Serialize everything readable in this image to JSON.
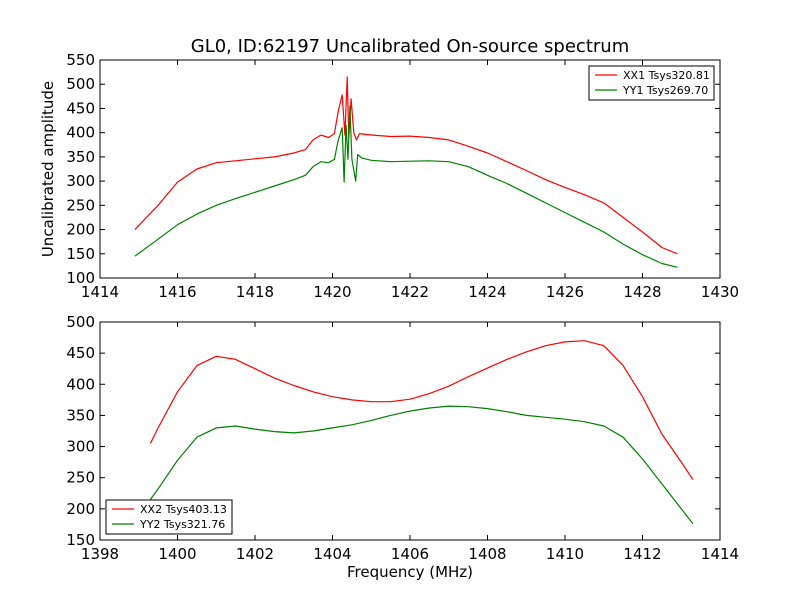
{
  "figure": {
    "title": "GL0, ID:62197 Uncalibrated On-source spectrum",
    "xlabel": "Frequency (MHz)"
  },
  "chart_data": [
    {
      "type": "line",
      "ylabel": "Uncalibrated amplitude",
      "xlim": [
        1414,
        1430
      ],
      "ylim": [
        100,
        550
      ],
      "xticks": [
        1414,
        1416,
        1418,
        1420,
        1422,
        1424,
        1426,
        1428,
        1430
      ],
      "yticks": [
        100,
        150,
        200,
        250,
        300,
        350,
        400,
        450,
        500,
        550
      ],
      "legend": "top-right",
      "grid": false,
      "series": [
        {
          "name": "XX1 Tsys320.81",
          "color": "#ff0000",
          "x": [
            1414.9,
            1415.5,
            1416.0,
            1416.5,
            1417.0,
            1417.5,
            1418.0,
            1418.5,
            1419.0,
            1419.3,
            1419.5,
            1419.7,
            1419.9,
            1420.05,
            1420.15,
            1420.25,
            1420.32,
            1420.38,
            1420.42,
            1420.48,
            1420.55,
            1420.62,
            1420.7,
            1420.9,
            1421.2,
            1421.5,
            1422.0,
            1422.5,
            1423.0,
            1423.5,
            1424.0,
            1424.5,
            1425.0,
            1425.5,
            1426.0,
            1426.5,
            1427.0,
            1427.5,
            1428.0,
            1428.5,
            1428.9
          ],
          "y": [
            200,
            250,
            298,
            325,
            338,
            342,
            346,
            350,
            358,
            365,
            385,
            395,
            390,
            398,
            445,
            478,
            395,
            515,
            390,
            470,
            400,
            385,
            398,
            396,
            394,
            392,
            393,
            390,
            385,
            372,
            358,
            340,
            322,
            303,
            287,
            272,
            255,
            225,
            195,
            163,
            150
          ]
        },
        {
          "name": "YY1 Tsys269.70",
          "color": "#008000",
          "x": [
            1414.9,
            1415.5,
            1416.0,
            1416.5,
            1417.0,
            1417.5,
            1418.0,
            1418.5,
            1419.0,
            1419.3,
            1419.5,
            1419.7,
            1419.9,
            1420.05,
            1420.15,
            1420.25,
            1420.3,
            1420.35,
            1420.4,
            1420.45,
            1420.5,
            1420.6,
            1420.65,
            1420.75,
            1421.0,
            1421.5,
            1422.0,
            1422.5,
            1423.0,
            1423.5,
            1424.0,
            1424.5,
            1425.0,
            1425.5,
            1426.0,
            1426.5,
            1427.0,
            1427.5,
            1428.0,
            1428.5,
            1428.9
          ],
          "y": [
            145,
            180,
            210,
            232,
            250,
            264,
            277,
            290,
            303,
            312,
            330,
            340,
            338,
            345,
            385,
            410,
            298,
            415,
            345,
            455,
            345,
            300,
            355,
            348,
            343,
            340,
            341,
            342,
            340,
            330,
            312,
            295,
            275,
            255,
            235,
            215,
            195,
            170,
            148,
            130,
            122
          ]
        }
      ]
    },
    {
      "type": "line",
      "ylabel": "",
      "xlabel": "Frequency (MHz)",
      "xlim": [
        1398,
        1414
      ],
      "ylim": [
        150,
        500
      ],
      "xticks": [
        1398,
        1400,
        1402,
        1404,
        1406,
        1408,
        1410,
        1412,
        1414
      ],
      "yticks": [
        150,
        200,
        250,
        300,
        350,
        400,
        450,
        500
      ],
      "legend": "bottom-left",
      "grid": false,
      "series": [
        {
          "name": "XX2 Tsys403.13",
          "color": "#ff0000",
          "x": [
            1399.3,
            1399.5,
            1400.0,
            1400.5,
            1401.0,
            1401.5,
            1402.0,
            1402.5,
            1403.0,
            1403.5,
            1404.0,
            1404.5,
            1405.0,
            1405.5,
            1406.0,
            1406.5,
            1407.0,
            1407.5,
            1408.0,
            1408.5,
            1409.0,
            1409.5,
            1410.0,
            1410.5,
            1411.0,
            1411.5,
            1412.0,
            1412.5,
            1413.0,
            1413.3
          ],
          "y": [
            305,
            330,
            388,
            430,
            445,
            440,
            425,
            410,
            398,
            388,
            380,
            375,
            372,
            372,
            376,
            385,
            397,
            412,
            426,
            440,
            452,
            462,
            468,
            470,
            462,
            430,
            380,
            320,
            275,
            247
          ]
        },
        {
          "name": "YY2 Tsys321.76",
          "color": "#008000",
          "x": [
            1399.3,
            1399.5,
            1400.0,
            1400.5,
            1401.0,
            1401.5,
            1402.0,
            1402.5,
            1403.0,
            1403.5,
            1404.0,
            1404.5,
            1405.0,
            1405.5,
            1406.0,
            1406.5,
            1407.0,
            1407.5,
            1408.0,
            1408.5,
            1409.0,
            1409.5,
            1410.0,
            1410.5,
            1411.0,
            1411.5,
            1412.0,
            1412.5,
            1413.0,
            1413.3
          ],
          "y": [
            215,
            232,
            278,
            315,
            330,
            333,
            328,
            324,
            322,
            325,
            330,
            335,
            342,
            350,
            357,
            362,
            365,
            364,
            361,
            356,
            350,
            347,
            344,
            340,
            333,
            315,
            280,
            240,
            200,
            176
          ]
        }
      ]
    }
  ]
}
